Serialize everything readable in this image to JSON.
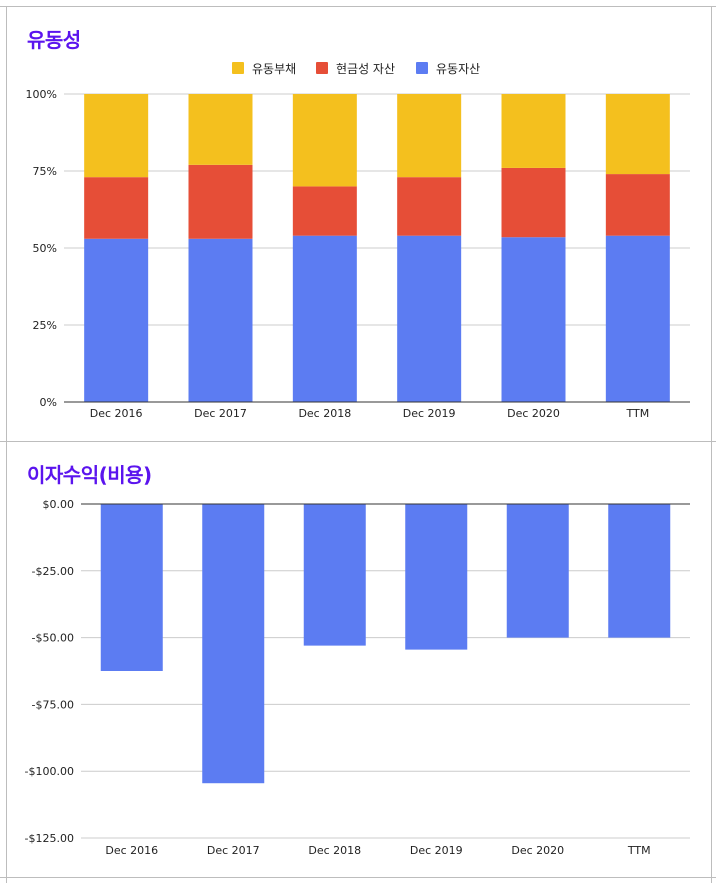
{
  "colors": {
    "title": "#5b14ee",
    "current_liabilities": "#f4c01e",
    "cash_assets": "#e64e37",
    "current_assets": "#5c7cf2",
    "gridline": "#cccccc",
    "axis": "#333333",
    "label": "#222222"
  },
  "chart_data": [
    {
      "type": "bar",
      "stacked": true,
      "title": "유동성",
      "categories": [
        "Dec 2016",
        "Dec 2017",
        "Dec 2018",
        "Dec 2019",
        "Dec 2020",
        "TTM"
      ],
      "series": [
        {
          "name": "유동자산",
          "color": "#5c7cf2",
          "values": [
            53,
            53,
            54,
            54,
            53.5,
            54
          ]
        },
        {
          "name": "현금성 자산",
          "color": "#e64e37",
          "values": [
            20,
            24,
            16,
            19,
            22.5,
            20
          ]
        },
        {
          "name": "유동부채",
          "color": "#f4c01e",
          "values": [
            27,
            23,
            30,
            27,
            24,
            26
          ]
        }
      ],
      "legend": [
        "유동부채",
        "현금성 자산",
        "유동자산"
      ],
      "legend_position": "top",
      "yticks": [
        "0%",
        "25%",
        "50%",
        "75%",
        "100%"
      ],
      "ylim": [
        0,
        100
      ],
      "xlabel": "",
      "ylabel": ""
    },
    {
      "type": "bar",
      "title": "이자수익(비용)",
      "categories": [
        "Dec 2016",
        "Dec 2017",
        "Dec 2018",
        "Dec 2019",
        "Dec 2020",
        "TTM"
      ],
      "values": [
        -62.5,
        -104.5,
        -53,
        -54.5,
        -50,
        -50
      ],
      "yticks": [
        "$0.00",
        "-$25.00",
        "-$50.00",
        "-$75.00",
        "-$100.00",
        "-$125.00"
      ],
      "ylim": [
        -125,
        0
      ],
      "xlabel": "",
      "ylabel": ""
    }
  ]
}
